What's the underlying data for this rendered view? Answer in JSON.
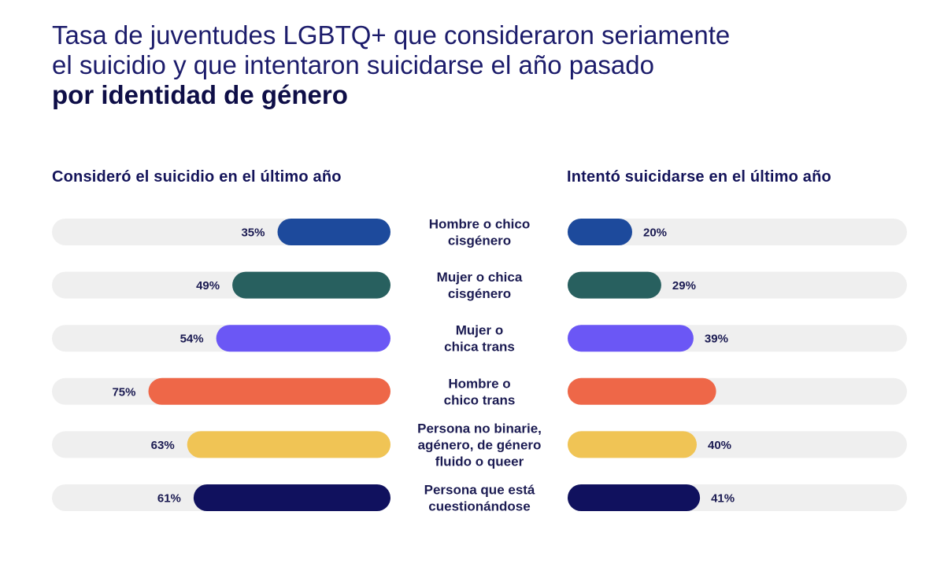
{
  "title": {
    "line1": "Tasa de juventudes LGBTQ+ que consideraron seriamente",
    "line2": "el suicidio y que intentaron suicidarse el año pasado",
    "line3": "por identidad de género"
  },
  "chart_data": {
    "type": "bar",
    "title": "Tasa de juventudes LGBTQ+ que consideraron seriamente el suicidio y que intentaron suicidarse el año pasado por identidad de género",
    "categories": [
      "Hombre o chico cisgénero",
      "Mujer o chica cisgénero",
      "Mujer o chica trans",
      "Hombre o chico trans",
      "Persona no binarie, agénero, de género fluido o queer",
      "Persona que está cuestionándose"
    ],
    "category_lines": [
      [
        "Hombre o chico",
        "cisgénero"
      ],
      [
        "Mujer o chica",
        "cisgénero"
      ],
      [
        "Mujer o",
        "chica trans"
      ],
      [
        "Hombre o",
        "chico trans"
      ],
      [
        "Persona no binarie,",
        "agénero, de género",
        "fluido o queer"
      ],
      [
        "Persona que está",
        "cuestionándose"
      ]
    ],
    "colors": [
      "#1d4a9c",
      "#28605f",
      "#6b57f5",
      "#ee6748",
      "#f0c455",
      "#10115e"
    ],
    "track_color": "#efefef",
    "ylim": [
      0,
      100
    ],
    "series": [
      {
        "name": "Consideró el suicidio en el último año",
        "values": [
          35,
          49,
          54,
          75,
          63,
          61
        ],
        "labels": [
          "35%",
          "49%",
          "54%",
          "75%",
          "63%",
          "61%"
        ]
      },
      {
        "name": "Intentó suicidarse en el último año",
        "values": [
          20,
          29,
          39,
          46,
          40,
          41
        ],
        "labels": [
          "20%",
          "29%",
          "39%",
          "",
          "40%",
          "41%"
        ]
      }
    ]
  }
}
